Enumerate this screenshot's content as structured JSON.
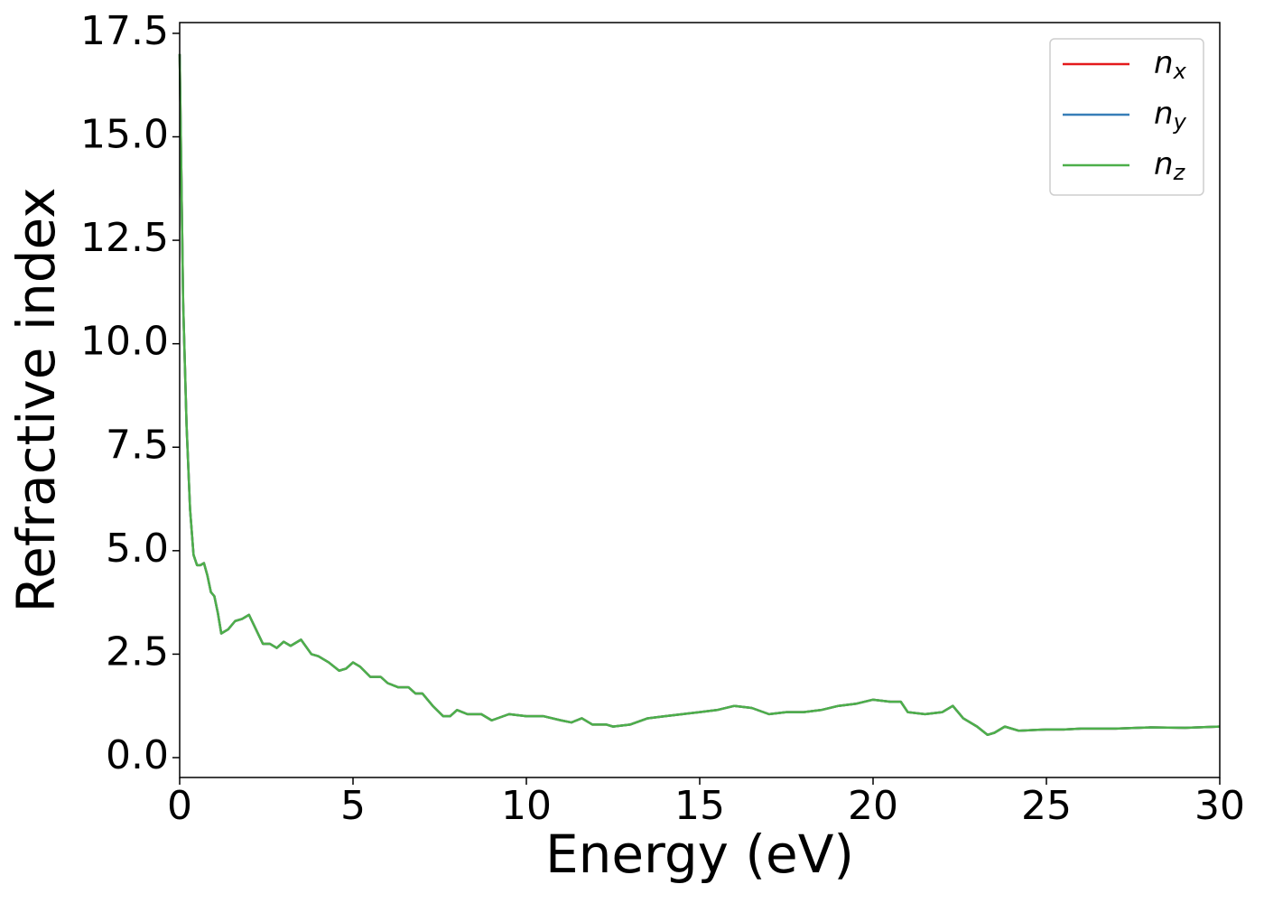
{
  "chart_data": {
    "type": "line",
    "xlabel": "Energy (eV)",
    "ylabel": "Refractive index",
    "x": [
      0,
      0.05,
      0.1,
      0.2,
      0.3,
      0.4,
      0.5,
      0.6,
      0.7,
      0.8,
      0.9,
      1.0,
      1.1,
      1.2,
      1.4,
      1.6,
      1.8,
      2.0,
      2.2,
      2.4,
      2.6,
      2.8,
      3.0,
      3.2,
      3.5,
      3.8,
      4.0,
      4.3,
      4.6,
      4.8,
      5.0,
      5.2,
      5.5,
      5.8,
      6.0,
      6.3,
      6.6,
      6.8,
      7.0,
      7.3,
      7.6,
      7.8,
      8.0,
      8.3,
      8.7,
      9.0,
      9.5,
      10,
      10.5,
      11,
      11.3,
      11.6,
      11.9,
      12.3,
      12.5,
      13,
      13.5,
      14,
      14.5,
      15,
      15.5,
      16,
      16.5,
      17,
      17.5,
      18,
      18.5,
      19,
      19.5,
      20,
      20.5,
      20.8,
      21,
      21.5,
      22,
      22.3,
      22.6,
      23,
      23.3,
      23.5,
      23.8,
      24.2,
      25,
      25.5,
      26,
      27,
      28,
      29,
      30
    ],
    "series": [
      {
        "name": "nx",
        "color": "#e41a1c",
        "values": [
          17.0,
          14,
          11,
          8,
          6,
          4.9,
          4.65,
          4.65,
          4.7,
          4.4,
          4.0,
          3.9,
          3.5,
          3.0,
          3.1,
          3.3,
          3.35,
          3.45,
          3.1,
          2.75,
          2.75,
          2.65,
          2.8,
          2.7,
          2.85,
          2.5,
          2.45,
          2.3,
          2.1,
          2.15,
          2.3,
          2.2,
          1.95,
          1.95,
          1.8,
          1.7,
          1.7,
          1.55,
          1.55,
          1.25,
          1.0,
          1.0,
          1.15,
          1.05,
          1.05,
          0.9,
          1.05,
          1.0,
          1.0,
          0.9,
          0.85,
          0.95,
          0.8,
          0.8,
          0.75,
          0.8,
          0.95,
          1.0,
          1.05,
          1.1,
          1.15,
          1.25,
          1.2,
          1.05,
          1.1,
          1.1,
          1.15,
          1.25,
          1.3,
          1.4,
          1.35,
          1.35,
          1.1,
          1.05,
          1.1,
          1.25,
          0.95,
          0.75,
          0.55,
          0.6,
          0.75,
          0.65,
          0.68,
          0.68,
          0.7,
          0.7,
          0.73,
          0.72,
          0.75
        ]
      },
      {
        "name": "ny",
        "color": "#377eb8",
        "values": [
          17.0,
          14,
          11,
          8,
          6,
          4.9,
          4.65,
          4.65,
          4.7,
          4.4,
          4.0,
          3.9,
          3.5,
          3.0,
          3.1,
          3.3,
          3.35,
          3.45,
          3.1,
          2.75,
          2.75,
          2.65,
          2.8,
          2.7,
          2.85,
          2.5,
          2.45,
          2.3,
          2.1,
          2.15,
          2.3,
          2.2,
          1.95,
          1.95,
          1.8,
          1.7,
          1.7,
          1.55,
          1.55,
          1.25,
          1.0,
          1.0,
          1.15,
          1.05,
          1.05,
          0.9,
          1.05,
          1.0,
          1.0,
          0.9,
          0.85,
          0.95,
          0.8,
          0.8,
          0.75,
          0.8,
          0.95,
          1.0,
          1.05,
          1.1,
          1.15,
          1.25,
          1.2,
          1.05,
          1.1,
          1.1,
          1.15,
          1.25,
          1.3,
          1.4,
          1.35,
          1.35,
          1.1,
          1.05,
          1.1,
          1.25,
          0.95,
          0.75,
          0.55,
          0.6,
          0.75,
          0.65,
          0.68,
          0.68,
          0.7,
          0.7,
          0.73,
          0.72,
          0.75
        ]
      },
      {
        "name": "nz",
        "color": "#4daf4a",
        "values": [
          17.0,
          14,
          11,
          8,
          6,
          4.9,
          4.65,
          4.65,
          4.7,
          4.4,
          4.0,
          3.9,
          3.5,
          3.0,
          3.1,
          3.3,
          3.35,
          3.45,
          3.1,
          2.75,
          2.75,
          2.65,
          2.8,
          2.7,
          2.85,
          2.5,
          2.45,
          2.3,
          2.1,
          2.15,
          2.3,
          2.2,
          1.95,
          1.95,
          1.8,
          1.7,
          1.7,
          1.55,
          1.55,
          1.25,
          1.0,
          1.0,
          1.15,
          1.05,
          1.05,
          0.9,
          1.05,
          1.0,
          1.0,
          0.9,
          0.85,
          0.95,
          0.8,
          0.8,
          0.75,
          0.8,
          0.95,
          1.0,
          1.05,
          1.1,
          1.15,
          1.25,
          1.2,
          1.05,
          1.1,
          1.1,
          1.15,
          1.25,
          1.3,
          1.4,
          1.35,
          1.35,
          1.1,
          1.05,
          1.1,
          1.25,
          0.95,
          0.75,
          0.55,
          0.6,
          0.75,
          0.65,
          0.68,
          0.68,
          0.7,
          0.7,
          0.73,
          0.72,
          0.75
        ]
      }
    ],
    "xlim": [
      0,
      30
    ],
    "xticks": [
      0,
      5,
      10,
      15,
      20,
      25,
      30
    ],
    "ylim": [
      -0.48,
      17.76
    ],
    "yticks": [
      {
        "value": 0,
        "label": "0.0"
      },
      2.5,
      {
        "value": 5,
        "label": "5.0"
      },
      7.5,
      {
        "value": 10,
        "label": "10.0"
      },
      12.5,
      {
        "value": 15,
        "label": "15.0"
      },
      17.5
    ],
    "legend": "upper right"
  }
}
